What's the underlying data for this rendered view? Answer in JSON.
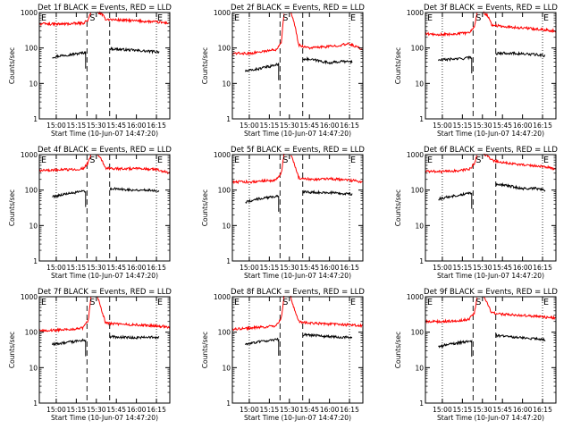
{
  "chart_data": {
    "type": "line",
    "layout": "3x3 grid of panels",
    "y_scale": "log",
    "ylim": [
      1,
      1000
    ],
    "y_ticks": [
      "1",
      "10",
      "100",
      "1000"
    ],
    "ylabel": "Counts/sec",
    "xlabel": "Start Time (10-Jun-07 14:47:20)",
    "x_ticks": [
      "15:00",
      "15:15",
      "15:30",
      "15:45",
      "16:00",
      "16:15"
    ],
    "xlim": [
      "14:47:20",
      "16:25"
    ],
    "dotted_markers_at": [
      "15:00",
      "16:15"
    ],
    "dashed_markers_at": [
      "15:23",
      "15:40"
    ],
    "marker_labels": {
      "start": "E",
      "middle": "S",
      "end": "E"
    },
    "series_colors": {
      "events": "#000000",
      "lld": "#ff0000"
    },
    "panels": [
      {
        "title": "Det 1f BLACK = Events, RED = LLD",
        "series": [
          {
            "name": "Events",
            "segments": [
              {
                "x": [
                  "14:57",
                  "15:05",
                  "15:15",
                  "15:22"
                ],
                "y": [
                  55,
                  62,
                  68,
                  75
                ]
              },
              {
                "x": [
                  "15:40",
                  "15:50",
                  "16:00",
                  "16:10",
                  "16:17"
                ],
                "y": [
                  95,
                  90,
                  85,
                  80,
                  78
                ]
              }
            ]
          },
          {
            "name": "LLD",
            "segments": [
              {
                "x": [
                  "14:47:20",
                  "15:00",
                  "15:10",
                  "15:20",
                  "15:24",
                  "15:26"
                ],
                "y": [
                  480,
                  470,
                  480,
                  500,
                  620,
                  1000
                ]
              },
              {
                "x": [
                  "15:31",
                  "15:34",
                  "15:37",
                  "15:45",
                  "16:00",
                  "16:15",
                  "16:25"
                ],
                "y": [
                  1000,
                  900,
                  650,
                  620,
                  580,
                  540,
                  500
                ]
              }
            ]
          }
        ]
      },
      {
        "title": "Det 2f BLACK = Events, RED = LLD",
        "series": [
          {
            "name": "Events",
            "segments": [
              {
                "x": [
                  "14:57",
                  "15:05",
                  "15:15",
                  "15:22"
                ],
                "y": [
                  22,
                  25,
                  30,
                  35
                ]
              },
              {
                "x": [
                  "15:40",
                  "15:50",
                  "16:00",
                  "16:10",
                  "16:17"
                ],
                "y": [
                  50,
                  45,
                  38,
                  42,
                  40
                ]
              }
            ]
          },
          {
            "name": "LLD",
            "segments": [
              {
                "x": [
                  "14:47:20",
                  "15:00",
                  "15:10",
                  "15:20",
                  "15:24",
                  "15:26"
                ],
                "y": [
                  70,
                  70,
                  80,
                  90,
                  150,
                  1000
                ]
              },
              {
                "x": [
                  "15:31",
                  "15:34",
                  "15:37",
                  "15:45",
                  "16:00",
                  "16:15",
                  "16:25"
                ],
                "y": [
                  1000,
                  450,
                  120,
                  100,
                  110,
                  130,
                  90
                ]
              }
            ]
          }
        ]
      },
      {
        "title": "Det 3f BLACK = Events, RED = LLD",
        "series": [
          {
            "name": "Events",
            "segments": [
              {
                "x": [
                  "14:57",
                  "15:05",
                  "15:15",
                  "15:22"
                ],
                "y": [
                  45,
                  48,
                  50,
                  55
                ]
              },
              {
                "x": [
                  "15:40",
                  "15:50",
                  "16:00",
                  "16:10",
                  "16:17"
                ],
                "y": [
                  70,
                  72,
                  68,
                  65,
                  60
                ]
              }
            ]
          },
          {
            "name": "LLD",
            "segments": [
              {
                "x": [
                  "14:47:20",
                  "15:00",
                  "15:10",
                  "15:20",
                  "15:24",
                  "15:26"
                ],
                "y": [
                  250,
                  240,
                  250,
                  270,
                  400,
                  1000
                ]
              },
              {
                "x": [
                  "15:31",
                  "15:34",
                  "15:37",
                  "15:45",
                  "16:00",
                  "16:15",
                  "16:25"
                ],
                "y": [
                  1000,
                  800,
                  450,
                  400,
                  370,
                  330,
                  300
                ]
              }
            ]
          }
        ]
      },
      {
        "title": "Det 4f BLACK = Events, RED = LLD",
        "series": [
          {
            "name": "Events",
            "segments": [
              {
                "x": [
                  "14:57",
                  "15:05",
                  "15:15",
                  "15:22"
                ],
                "y": [
                  65,
                  75,
                  85,
                  95
                ]
              },
              {
                "x": [
                  "15:40",
                  "15:50",
                  "16:00",
                  "16:10",
                  "16:17"
                ],
                "y": [
                  110,
                  105,
                  100,
                  100,
                  95
                ]
              }
            ]
          },
          {
            "name": "LLD",
            "segments": [
              {
                "x": [
                  "14:47:20",
                  "15:00",
                  "15:10",
                  "15:20",
                  "15:24",
                  "15:26"
                ],
                "y": [
                  360,
                  370,
                  380,
                  400,
                  600,
                  1000
                ]
              },
              {
                "x": [
                  "15:31",
                  "15:34",
                  "15:37",
                  "15:45",
                  "16:00",
                  "16:15",
                  "16:25"
                ],
                "y": [
                  1000,
                  700,
                  420,
                  400,
                  400,
                  380,
                  300
                ]
              }
            ]
          }
        ]
      },
      {
        "title": "Det 5f BLACK = Events, RED = LLD",
        "series": [
          {
            "name": "Events",
            "segments": [
              {
                "x": [
                  "14:57",
                  "15:05",
                  "15:15",
                  "15:22"
                ],
                "y": [
                  45,
                  55,
                  62,
                  70
                ]
              },
              {
                "x": [
                  "15:40",
                  "15:50",
                  "16:00",
                  "16:10",
                  "16:17"
                ],
                "y": [
                  90,
                  85,
                  85,
                  80,
                  75
                ]
              }
            ]
          },
          {
            "name": "LLD",
            "segments": [
              {
                "x": [
                  "14:47:20",
                  "15:00",
                  "15:10",
                  "15:20",
                  "15:24",
                  "15:26"
                ],
                "y": [
                  170,
                  170,
                  180,
                  190,
                  300,
                  1000
                ]
              },
              {
                "x": [
                  "15:31",
                  "15:34",
                  "15:37",
                  "15:45",
                  "16:00",
                  "16:15",
                  "16:25"
                ],
                "y": [
                  1000,
                  500,
                  220,
                  200,
                  210,
                  190,
                  170
                ]
              }
            ]
          }
        ]
      },
      {
        "title": "Det 6f BLACK = Events, RED = LLD",
        "series": [
          {
            "name": "Events",
            "segments": [
              {
                "x": [
                  "14:57",
                  "15:05",
                  "15:15",
                  "15:22"
                ],
                "y": [
                  55,
                  65,
                  75,
                  85
                ]
              },
              {
                "x": [
                  "15:40",
                  "15:50",
                  "16:00",
                  "16:10",
                  "16:17"
                ],
                "y": [
                  150,
                  130,
                  110,
                  110,
                  100
                ]
              }
            ]
          },
          {
            "name": "LLD",
            "segments": [
              {
                "x": [
                  "14:47:20",
                  "15:00",
                  "15:10",
                  "15:20",
                  "15:24",
                  "15:26"
                ],
                "y": [
                  340,
                  330,
                  350,
                  380,
                  550,
                  1000
                ]
              },
              {
                "x": [
                  "15:31",
                  "15:34",
                  "15:37",
                  "15:45",
                  "16:00",
                  "16:15",
                  "16:25"
                ],
                "y": [
                  1000,
                  900,
                  700,
                  600,
                  520,
                  460,
                  400
                ]
              }
            ]
          }
        ]
      },
      {
        "title": "Det 7f BLACK = Events, RED = LLD",
        "series": [
          {
            "name": "Events",
            "segments": [
              {
                "x": [
                  "14:57",
                  "15:05",
                  "15:15",
                  "15:22"
                ],
                "y": [
                  45,
                  50,
                  55,
                  60
                ]
              },
              {
                "x": [
                  "15:40",
                  "15:50",
                  "16:00",
                  "16:10",
                  "16:17"
                ],
                "y": [
                  75,
                  72,
                  70,
                  72,
                  70
                ]
              }
            ]
          },
          {
            "name": "LLD",
            "segments": [
              {
                "x": [
                  "14:47:20",
                  "15:00",
                  "15:10",
                  "15:20",
                  "15:24",
                  "15:26"
                ],
                "y": [
                  110,
                  115,
                  120,
                  130,
                  220,
                  1000
                ]
              },
              {
                "x": [
                  "15:31",
                  "15:34",
                  "15:37",
                  "15:45",
                  "16:00",
                  "16:15",
                  "16:25"
                ],
                "y": [
                  1000,
                  400,
                  180,
                  170,
                  160,
                  150,
                  140
                ]
              }
            ]
          }
        ]
      },
      {
        "title": "Det 8f BLACK = Events, RED = LLD",
        "series": [
          {
            "name": "Events",
            "segments": [
              {
                "x": [
                  "14:57",
                  "15:05",
                  "15:15",
                  "15:22"
                ],
                "y": [
                  45,
                  52,
                  58,
                  62
                ]
              },
              {
                "x": [
                  "15:40",
                  "15:50",
                  "16:00",
                  "16:10",
                  "16:17"
                ],
                "y": [
                  85,
                  80,
                  75,
                  72,
                  70
                ]
              }
            ]
          },
          {
            "name": "LLD",
            "segments": [
              {
                "x": [
                  "14:47:20",
                  "15:00",
                  "15:10",
                  "15:20",
                  "15:24",
                  "15:26"
                ],
                "y": [
                  120,
                  130,
                  140,
                  150,
                  250,
                  1000
                ]
              },
              {
                "x": [
                  "15:31",
                  "15:34",
                  "15:37",
                  "15:45",
                  "16:00",
                  "16:15",
                  "16:25"
                ],
                "y": [
                  1000,
                  400,
                  200,
                  180,
                  170,
                  160,
                  150
                ]
              }
            ]
          }
        ]
      },
      {
        "title": "Det 9f BLACK = Events, RED = LLD",
        "series": [
          {
            "name": "Events",
            "segments": [
              {
                "x": [
                  "14:57",
                  "15:05",
                  "15:15",
                  "15:22"
                ],
                "y": [
                  40,
                  45,
                  52,
                  58
                ]
              },
              {
                "x": [
                  "15:40",
                  "15:50",
                  "16:00",
                  "16:10",
                  "16:17"
                ],
                "y": [
                  80,
                  75,
                  70,
                  65,
                  60
                ]
              }
            ]
          },
          {
            "name": "LLD",
            "segments": [
              {
                "x": [
                  "14:47:20",
                  "15:00",
                  "15:10",
                  "15:20",
                  "15:24",
                  "15:26"
                ],
                "y": [
                  200,
                  200,
                  210,
                  230,
                  350,
                  1000
                ]
              },
              {
                "x": [
                  "15:31",
                  "15:34",
                  "15:37",
                  "15:45",
                  "16:00",
                  "16:15",
                  "16:25"
                ],
                "y": [
                  1000,
                  600,
                  350,
                  320,
                  300,
                  270,
                  250
                ]
              }
            ]
          }
        ]
      }
    ]
  }
}
